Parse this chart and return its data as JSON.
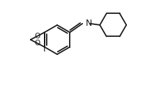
{
  "bg_color": "#ffffff",
  "line_color": "#1a1a1a",
  "line_width": 1.3,
  "figsize": [
    2.41,
    1.25
  ],
  "dpi": 100,
  "text_I": "I",
  "text_N": "N",
  "text_O1": "O",
  "text_O2": "O",
  "font_size": 7.5
}
